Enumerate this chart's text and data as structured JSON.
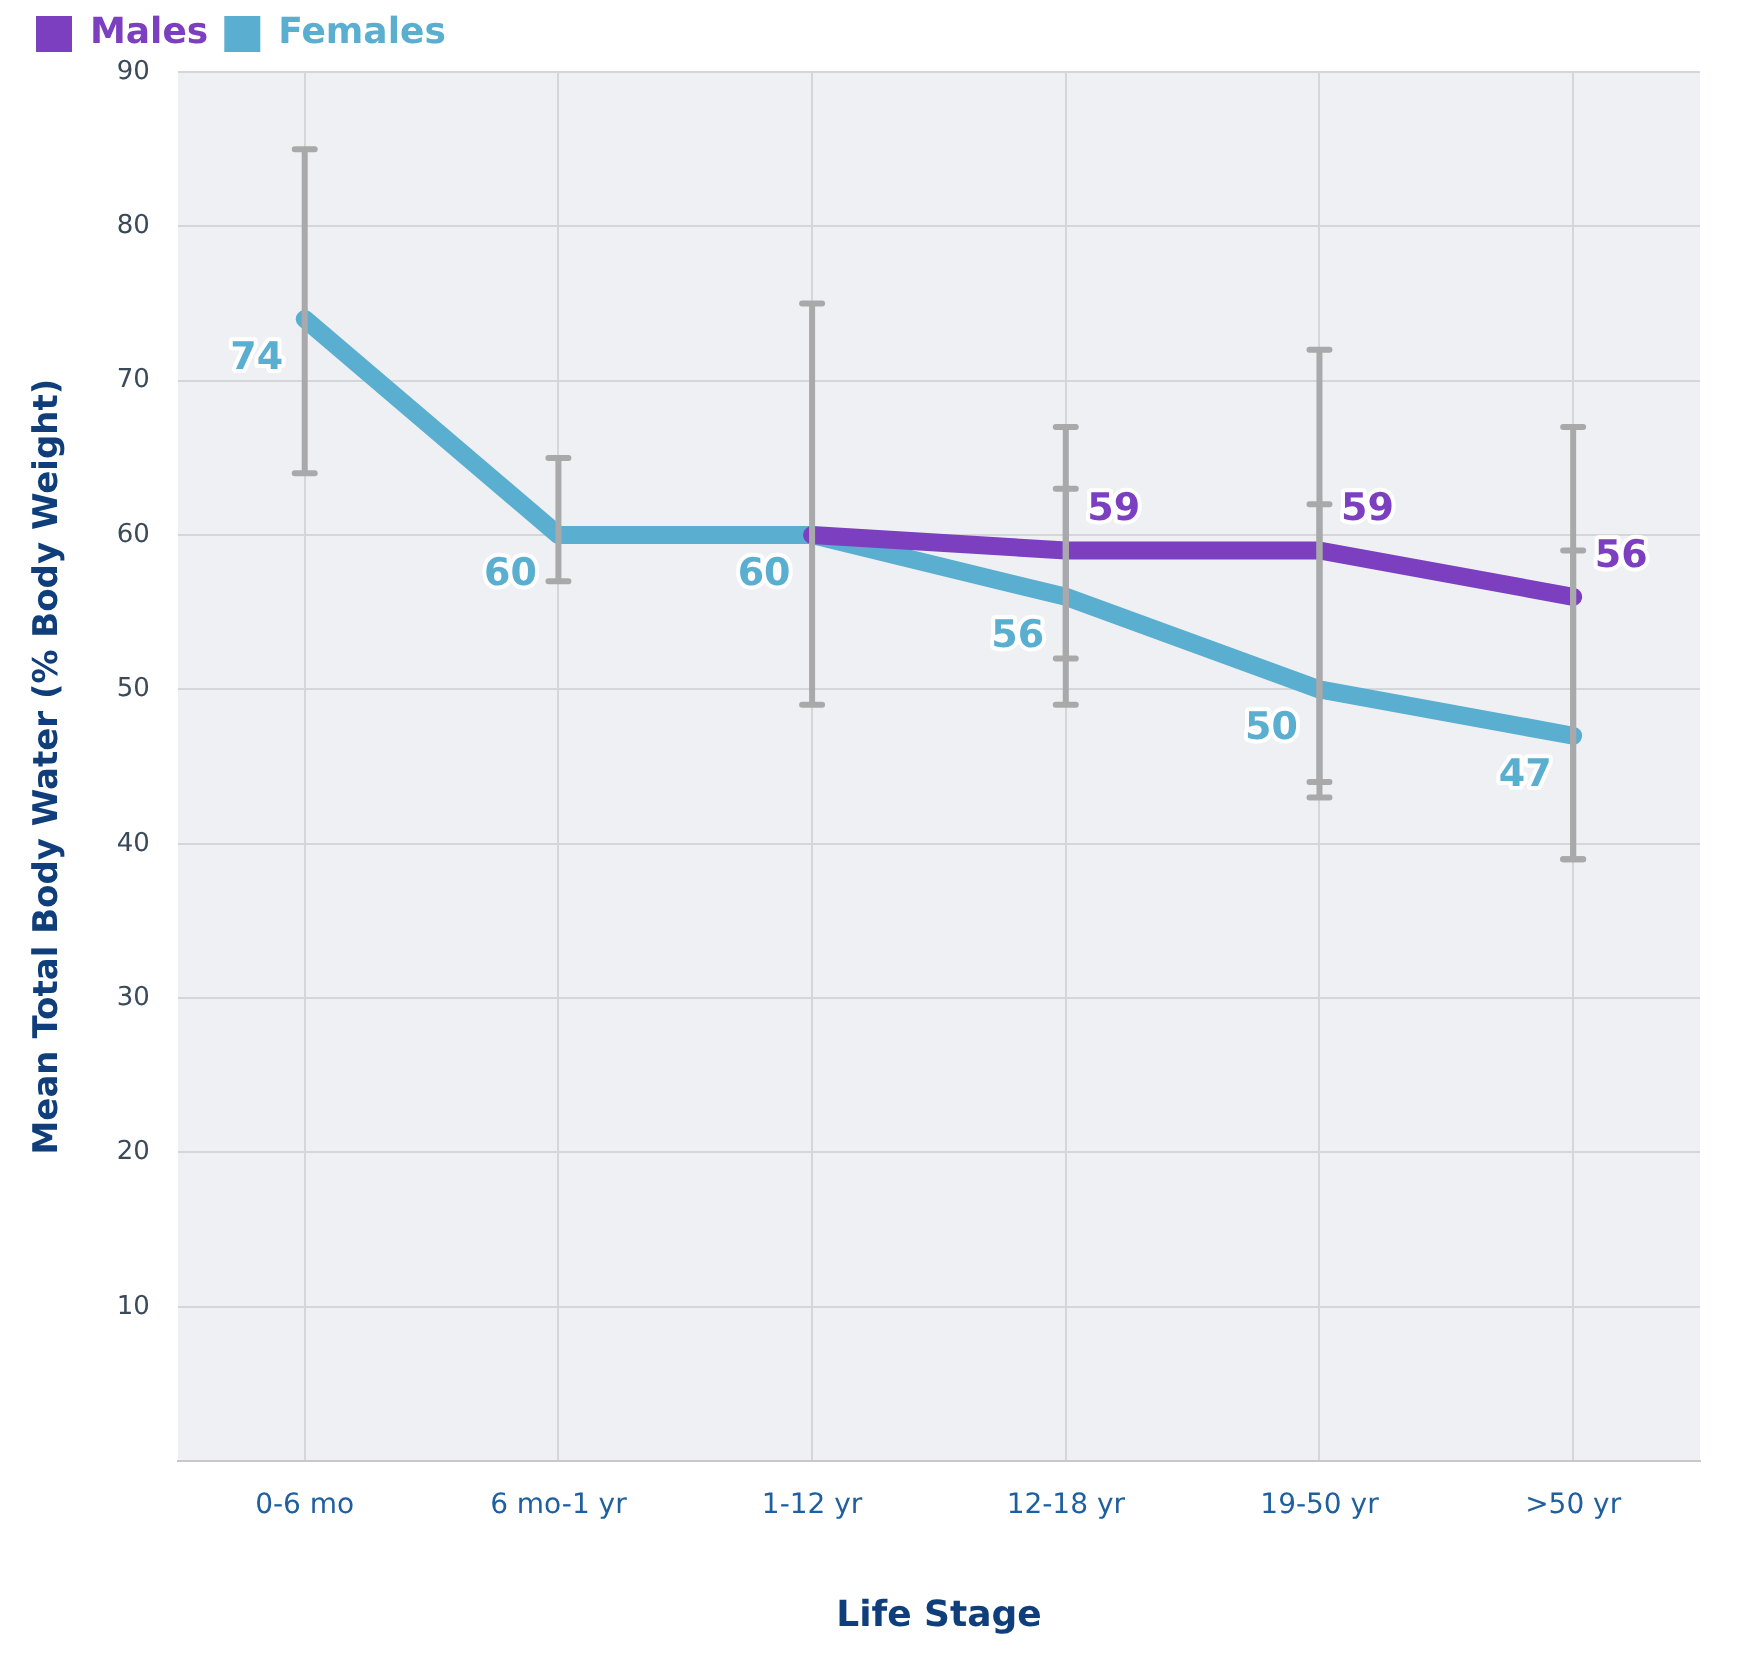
{
  "chart_data": {
    "type": "line",
    "xlabel": "Life Stage",
    "ylabel": "Mean Total Body Water (% Body Weight)",
    "categories": [
      "0-6 mo",
      "6 mo-1 yr",
      "1-12 yr",
      "12-18 yr",
      "19-50 yr",
      ">50 yr"
    ],
    "series": [
      {
        "name": "Males",
        "color": "#7b3fbf",
        "values": [
          null,
          null,
          60,
          59,
          59,
          56
        ],
        "value_labels": [
          null,
          null,
          null,
          "59",
          "59",
          "56"
        ],
        "errors": [
          null,
          null,
          null,
          [
            49,
            67
          ],
          [
            43,
            72
          ],
          [
            39,
            67
          ]
        ]
      },
      {
        "name": "Females",
        "color": "#5aaed0",
        "values": [
          74,
          60,
          60,
          56,
          50,
          47
        ],
        "value_labels": [
          "74",
          "60",
          "60",
          "56",
          "50",
          "47"
        ],
        "errors": [
          [
            64,
            85
          ],
          [
            57,
            65
          ],
          [
            49,
            75
          ],
          [
            52,
            63
          ],
          [
            44,
            62
          ],
          [
            39,
            59
          ]
        ]
      }
    ],
    "ylim": [
      0,
      90
    ],
    "yticks": [
      10,
      20,
      30,
      40,
      50,
      60,
      70,
      80,
      90
    ],
    "grid": true,
    "legend": "top left",
    "marker": "none",
    "line_style": "solid"
  }
}
